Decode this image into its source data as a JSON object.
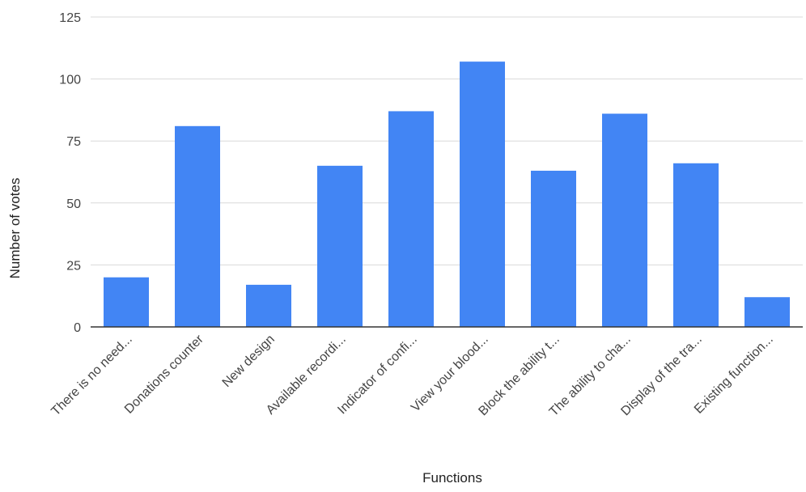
{
  "chart_data": {
    "type": "bar",
    "title": "",
    "xlabel": "Functions",
    "ylabel": "Number of votes",
    "ylim": [
      0,
      125
    ],
    "yticks": [
      0,
      25,
      50,
      75,
      100,
      125
    ],
    "grid": true,
    "legend": "none",
    "bar_color": "#4285f4",
    "categories": [
      "There is no need...",
      "Donations counter",
      "New design",
      "Available recordi...",
      "Indicator of confi...",
      "View your blood...",
      "Block the ability t...",
      "The ability to cha...",
      "Display of the tra...",
      "Existing function..."
    ],
    "values": [
      20,
      81,
      17,
      65,
      87,
      107,
      63,
      86,
      66,
      12
    ]
  }
}
